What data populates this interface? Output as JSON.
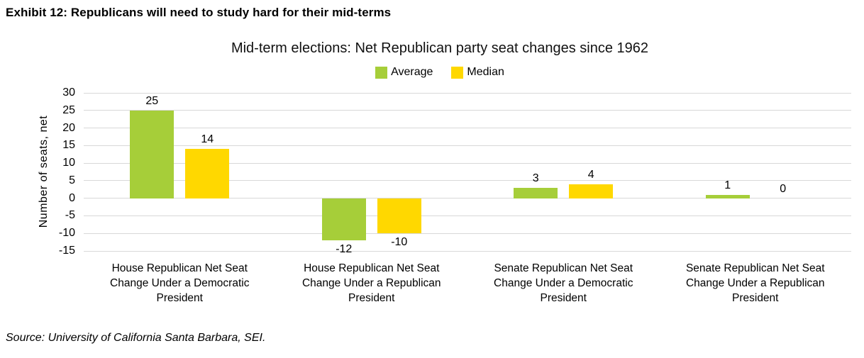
{
  "exhibit_title": "Exhibit 12: Republicans will need to study hard for their mid-terms",
  "source_note": "Source: University of California Santa Barbara, SEI.",
  "colors": {
    "average_green": "#A6CE39",
    "median_yellow": "#FFD800",
    "gridline": "#D8D8D8",
    "text": "#000000"
  },
  "chart_data": {
    "type": "bar",
    "title": "Mid-term elections: Net Republican party seat changes since 1962",
    "ylabel": "Number of seats, net",
    "xlabel": "",
    "ylim": [
      -15,
      30
    ],
    "ytick_step": 5,
    "grid": true,
    "legend_position": "top",
    "categories": [
      "House Republican Net Seat Change Under a Democratic President",
      "House Republican Net Seat Change Under a Republican President",
      "Senate Republican Net Seat Change Under a Democratic President",
      "Senate Republican Net Seat Change Under a Republican President"
    ],
    "series": [
      {
        "name": "Average",
        "color": "#A6CE39",
        "values": [
          25,
          -12,
          3,
          1
        ]
      },
      {
        "name": "Median",
        "color": "#FFD800",
        "values": [
          14,
          -10,
          4,
          0
        ]
      }
    ]
  }
}
